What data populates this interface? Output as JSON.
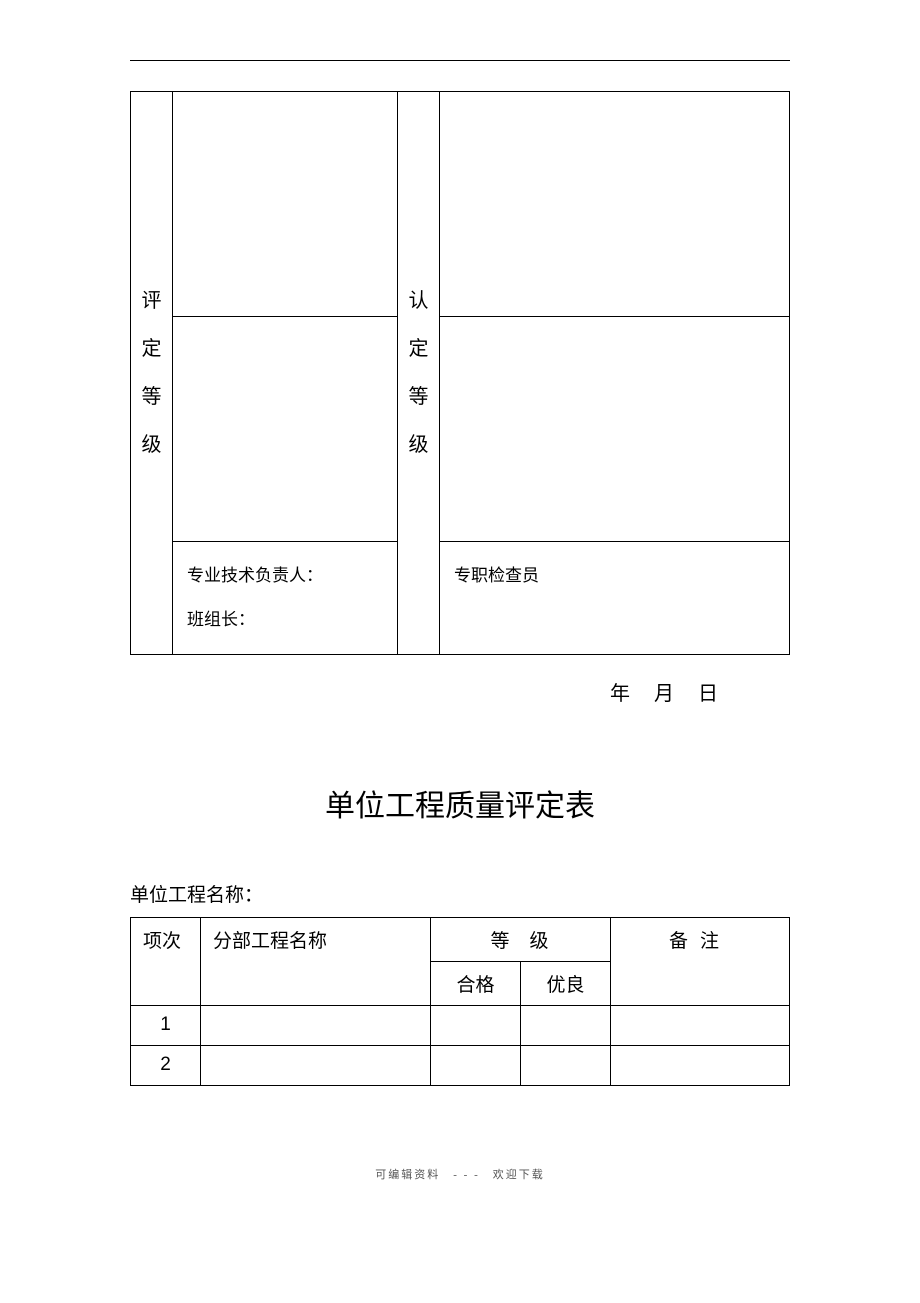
{
  "table1": {
    "left_label": "评定等级",
    "right_label": "认定等级",
    "sig_left_line1": "专业技术负责人：",
    "sig_left_line2": "班组长：",
    "sig_right_line1": "专职检查员"
  },
  "date_line": "年　月　日",
  "title": "单位工程质量评定表",
  "subtitle": "单位工程名称：",
  "table2": {
    "col1_header": "项次",
    "col2_header": "分部工程名称",
    "grade_header": "等级",
    "col3_header": "合格",
    "col4_header": "优良",
    "col5_header": "备注",
    "rows": [
      {
        "num": "1"
      },
      {
        "num": "2"
      }
    ]
  },
  "footer": "可编辑资料　- - -　欢迎下载",
  "colors": {
    "text": "#000000",
    "border": "#000000",
    "background": "#ffffff",
    "footer_text": "#555555"
  }
}
